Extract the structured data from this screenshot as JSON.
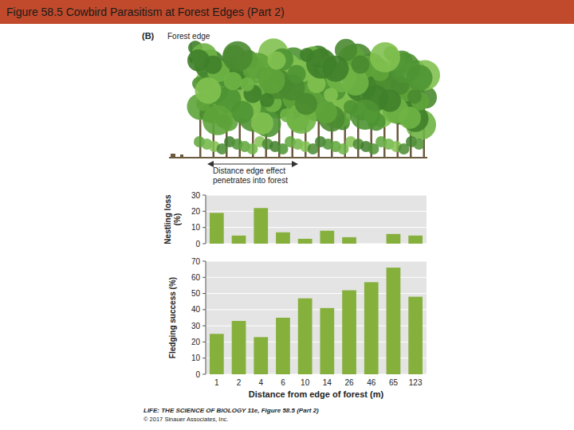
{
  "header": {
    "title": "Figure 58.5 Cowbird Parasitism at Forest Edges (Part 2)"
  },
  "panel": {
    "letter": "(B)",
    "edge_label": "Forest edge",
    "edge_effect": "Distance edge effect penetrates into forest"
  },
  "chart_data": [
    {
      "type": "bar",
      "y_label": "Nestling loss (%)",
      "categories": [
        "1",
        "2",
        "4",
        "6",
        "10",
        "14",
        "26",
        "46",
        "65",
        "123"
      ],
      "values": [
        19,
        5,
        22,
        7,
        3,
        8,
        4,
        0,
        6,
        5
      ],
      "color": "#86b03c",
      "ylim": [
        0,
        30
      ],
      "yticks": [
        0,
        10,
        20,
        30
      ],
      "grid": true,
      "tick_labels": "y"
    },
    {
      "type": "bar",
      "x_label": "Distance from edge of forest (m)",
      "y_label": "Fledging success (%)",
      "categories": [
        "1",
        "2",
        "4",
        "6",
        "10",
        "14",
        "26",
        "46",
        "65",
        "123"
      ],
      "values": [
        25,
        33,
        23,
        35,
        47,
        41,
        52,
        57,
        66,
        48
      ],
      "color": "#86b03c",
      "ylim": [
        0,
        70
      ],
      "yticks": [
        0,
        10,
        20,
        30,
        40,
        50,
        60,
        70
      ],
      "grid": true
    }
  ],
  "credit": {
    "source": "LIFE: THE SCIENCE OF BIOLOGY 11e, Figure 58.5 (Part 2)",
    "copyright": "© 2017 Sinauer Associates, Inc."
  }
}
